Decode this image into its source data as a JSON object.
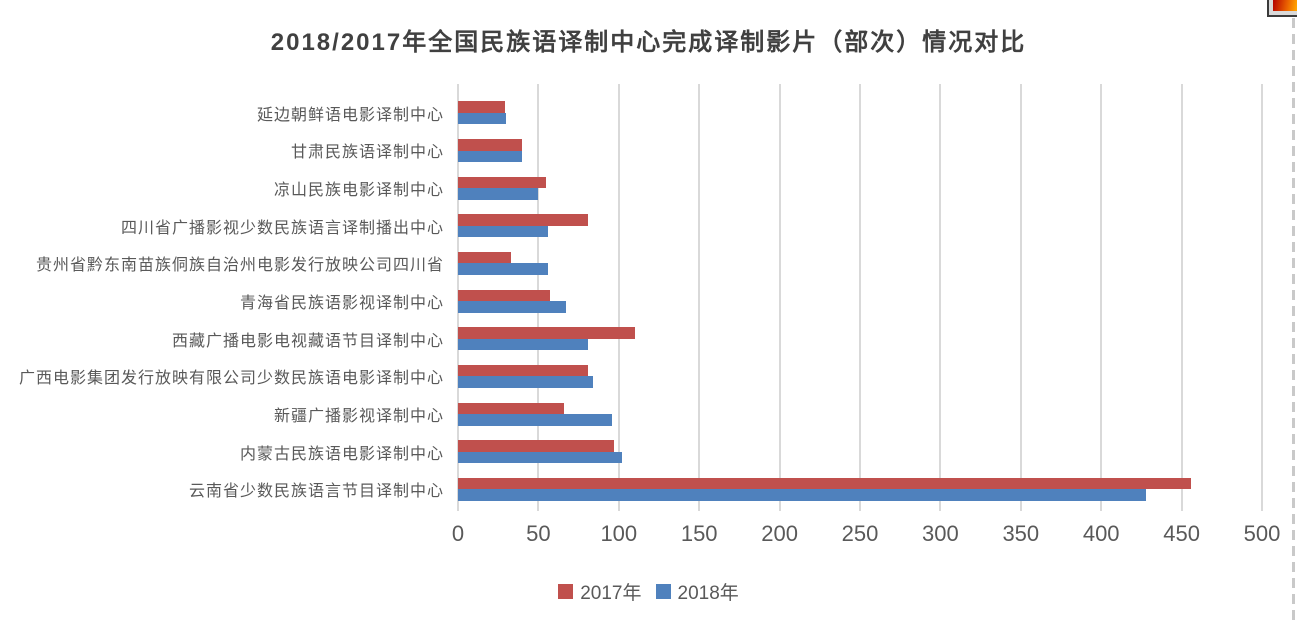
{
  "chart_data": {
    "type": "bar",
    "orientation": "horizontal",
    "title": "2018/2017年全国民族语译制中心完成译制影片（部次）情况对比",
    "categories": [
      "延边朝鲜语电影译制中心",
      "甘肃民族语译制中心",
      "凉山民族电影译制中心",
      "四川省广播影视少数民族语言译制播出中心",
      "贵州省黔东南苗族侗族自治州电影发行放映公司四川省",
      "青海省民族语影视译制中心",
      "西藏广播电影电视藏语节目译制中心",
      "广西电影集团发行放映有限公司少数民族语电影译制中心",
      "新疆广播影视译制中心",
      "内蒙古民族语电影译制中心",
      "云南省少数民族语言节目译制中心"
    ],
    "series": [
      {
        "name": "2017年",
        "color": "#c0504d",
        "values": [
          29,
          40,
          55,
          81,
          33,
          57,
          110,
          81,
          66,
          97,
          456
        ]
      },
      {
        "name": "2018年",
        "color": "#4f81bd",
        "values": [
          30,
          40,
          50,
          56,
          56,
          67,
          81,
          84,
          96,
          102,
          428
        ]
      }
    ],
    "xlim": [
      0,
      500
    ],
    "xticks": [
      0,
      50,
      100,
      150,
      200,
      250,
      300,
      350,
      400,
      450,
      500
    ],
    "xlabel": "",
    "ylabel": "",
    "grid": "vertical",
    "legend_position": "bottom",
    "colors": {
      "grid": "#d9d9d9",
      "axis_text": "#595959",
      "category_text": "#595959",
      "title_text": "#404040"
    }
  },
  "decorations": {
    "corner_icon": "gradient-swatch-icon",
    "page_break_line": "dashed-vertical-line"
  }
}
